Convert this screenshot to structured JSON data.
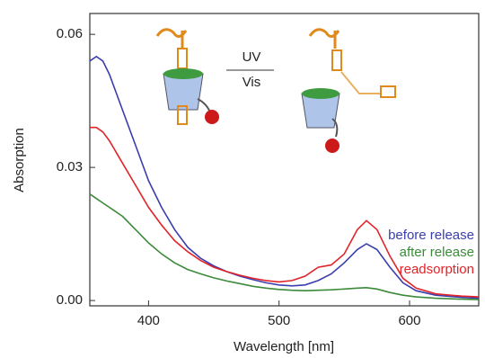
{
  "chart_data": {
    "type": "line",
    "x_label": "Wavelength [nm]",
    "y_label": "Absorption",
    "annotations": [
      "UV",
      "Vis"
    ],
    "x": [
      355,
      360,
      365,
      370,
      380,
      390,
      400,
      410,
      420,
      430,
      440,
      450,
      460,
      470,
      480,
      490,
      500,
      510,
      520,
      530,
      540,
      550,
      560,
      567,
      575,
      585,
      595,
      605,
      620,
      640,
      653
    ],
    "series": [
      {
        "name": "before release",
        "color": "#3b3fae",
        "values": [
          0.054,
          0.055,
          0.054,
          0.051,
          0.043,
          0.035,
          0.027,
          0.021,
          0.016,
          0.012,
          0.0095,
          0.0078,
          0.0065,
          0.0055,
          0.0047,
          0.004,
          0.0035,
          0.0033,
          0.0035,
          0.0045,
          0.006,
          0.0085,
          0.0115,
          0.0128,
          0.0115,
          0.0075,
          0.004,
          0.0022,
          0.0012,
          0.0007,
          0.0005
        ]
      },
      {
        "name": "after release",
        "color": "#3c8a3a",
        "values": [
          0.024,
          0.023,
          0.022,
          0.021,
          0.019,
          0.016,
          0.013,
          0.0105,
          0.0085,
          0.007,
          0.006,
          0.0051,
          0.0044,
          0.0038,
          0.0032,
          0.0028,
          0.0025,
          0.0023,
          0.0022,
          0.0023,
          0.0024,
          0.0026,
          0.0028,
          0.0029,
          0.0026,
          0.0018,
          0.0012,
          0.0008,
          0.0005,
          0.0003,
          0.0002
        ]
      },
      {
        "name": "readsorption",
        "color": "#e0242a",
        "values": [
          0.039,
          0.039,
          0.038,
          0.036,
          0.031,
          0.026,
          0.021,
          0.017,
          0.0135,
          0.011,
          0.009,
          0.0075,
          0.0065,
          0.0057,
          0.005,
          0.0045,
          0.0042,
          0.0045,
          0.0055,
          0.0075,
          0.008,
          0.0105,
          0.016,
          0.018,
          0.016,
          0.01,
          0.005,
          0.0028,
          0.0015,
          0.001,
          0.0008
        ]
      }
    ],
    "xlim": [
      355,
      653
    ],
    "ylim": [
      -0.0012,
      0.0647
    ],
    "xticks": [
      400,
      500,
      600
    ],
    "yticks": [
      {
        "value": 0,
        "label": "0.00"
      },
      {
        "value": 0.03,
        "label": "0.03"
      },
      {
        "value": 0.06,
        "label": "0.06"
      }
    ]
  }
}
